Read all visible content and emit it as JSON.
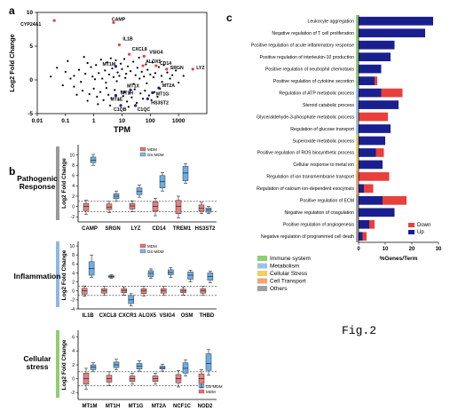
{
  "figure_label": "Fig.2",
  "colors": {
    "red": "#e8403a",
    "blue": "#1a1f8f",
    "box_blue": "#6aaee6",
    "box_red": "#e58080",
    "mdm_red": "#ef6b6b",
    "ds_blue": "#7bb6ea",
    "immune": "#8fcf6f",
    "metabolism": "#9cc2e8",
    "stress": "#f3cd60",
    "transport": "#f2a56e",
    "others": "#a0a0a0"
  },
  "chart_data": [
    {
      "panel": "a",
      "type": "scatter",
      "xlabel": "TPM",
      "ylabel": "Log2 Fold Change",
      "xscale": "log",
      "xlim": [
        0.01,
        10000
      ],
      "ylim": [
        -5,
        10
      ],
      "x_ticks": [
        "0.01",
        "0.1",
        "1",
        "10",
        "100",
        "1000"
      ],
      "y_ticks": [
        "-5",
        "0",
        "5",
        "10"
      ],
      "labeled_genes": [
        {
          "name": "CYP24A1",
          "x": 0.04,
          "y": 8.8,
          "color": "red"
        },
        {
          "name": "CAMP",
          "x": 5,
          "y": 8.5,
          "color": "red"
        },
        {
          "name": "IL1B",
          "x": 8,
          "y": 5.2,
          "color": "red"
        },
        {
          "name": "CXCL8",
          "x": 18,
          "y": 3.8,
          "color": "red"
        },
        {
          "name": "VSIG4",
          "x": 60,
          "y": 3.5,
          "color": "red"
        },
        {
          "name": "ALOX5",
          "x": 55,
          "y": 2.1,
          "color": "red"
        },
        {
          "name": "CD14",
          "x": 160,
          "y": 2.1,
          "color": "red"
        },
        {
          "name": "SRGN",
          "x": 380,
          "y": 1.6,
          "color": "red"
        },
        {
          "name": "LYZ",
          "x": 3200,
          "y": 1.6,
          "color": "red"
        },
        {
          "name": "MT1M",
          "x": 6,
          "y": 2.0,
          "color": "blue"
        },
        {
          "name": "MT2A",
          "x": 200,
          "y": -1.2,
          "color": "blue"
        },
        {
          "name": "MT1X",
          "x": 20,
          "y": -1.5,
          "color": "blue"
        },
        {
          "name": "MT1H",
          "x": 12,
          "y": -1.8,
          "color": "blue"
        },
        {
          "name": "MT1G",
          "x": 120,
          "y": -1.9,
          "color": "blue"
        },
        {
          "name": "MT1E",
          "x": 6,
          "y": -2.3,
          "color": "blue"
        },
        {
          "name": "HS3ST2",
          "x": 80,
          "y": -2.8,
          "color": "blue"
        },
        {
          "name": "C1QB",
          "x": 9,
          "y": -3.8,
          "color": "blue"
        },
        {
          "name": "C1QC",
          "x": 30,
          "y": -3.8,
          "color": "blue"
        }
      ],
      "points": [
        [
          0.1,
          1.2
        ],
        [
          0.2,
          0.6
        ],
        [
          0.3,
          1.5
        ],
        [
          0.5,
          0.9
        ],
        [
          0.6,
          2.5
        ],
        [
          0.8,
          1.9
        ],
        [
          0.9,
          0.5
        ],
        [
          1.2,
          2.2
        ],
        [
          1.5,
          1.0
        ],
        [
          1.8,
          3.0
        ],
        [
          2.0,
          0.2
        ],
        [
          2.5,
          1.4
        ],
        [
          3.0,
          2.6
        ],
        [
          3.5,
          0.8
        ],
        [
          4.0,
          3.2
        ],
        [
          4.5,
          1.7
        ],
        [
          5.0,
          0.4
        ],
        [
          6.0,
          2.9
        ],
        [
          7.0,
          1.1
        ],
        [
          8.0,
          0.6
        ],
        [
          9.0,
          2.4
        ],
        [
          10,
          1.6
        ],
        [
          12,
          3.1
        ],
        [
          14,
          0.9
        ],
        [
          16,
          2.0
        ],
        [
          20,
          1.3
        ],
        [
          25,
          2.7
        ],
        [
          30,
          0.7
        ],
        [
          35,
          1.8
        ],
        [
          40,
          3.3
        ],
        [
          50,
          1.2
        ],
        [
          60,
          0.5
        ],
        [
          70,
          2.3
        ],
        [
          80,
          1.5
        ],
        [
          100,
          0.8
        ],
        [
          120,
          2.6
        ],
        [
          150,
          1.0
        ],
        [
          200,
          1.9
        ],
        [
          250,
          0.6
        ],
        [
          300,
          2.2
        ],
        [
          400,
          1.1
        ],
        [
          600,
          0.7
        ],
        [
          800,
          1.4
        ],
        [
          0.2,
          -1.0
        ],
        [
          0.4,
          -1.6
        ],
        [
          0.7,
          -2.1
        ],
        [
          1.0,
          -1.3
        ],
        [
          1.3,
          -2.5
        ],
        [
          1.7,
          -1.8
        ],
        [
          2.2,
          -3.0
        ],
        [
          2.8,
          -1.2
        ],
        [
          3.3,
          -2.2
        ],
        [
          4.2,
          -2.7
        ],
        [
          5.5,
          -1.5
        ],
        [
          7.5,
          -2.9
        ],
        [
          9.5,
          -1.7
        ],
        [
          11,
          -2.4
        ],
        [
          15,
          -3.2
        ],
        [
          18,
          -1.9
        ],
        [
          22,
          -2.6
        ],
        [
          28,
          -1.4
        ],
        [
          33,
          -3.4
        ],
        [
          45,
          -2.0
        ],
        [
          55,
          -2.8
        ],
        [
          65,
          -1.6
        ],
        [
          90,
          -2.3
        ],
        [
          110,
          -3.0
        ],
        [
          140,
          -1.8
        ],
        [
          180,
          -2.5
        ],
        [
          220,
          -1.3
        ],
        [
          0.15,
          0.2
        ],
        [
          0.35,
          -0.3
        ],
        [
          0.05,
          1.8
        ],
        [
          0.08,
          -0.8
        ],
        [
          1.1,
          0.1
        ],
        [
          2.7,
          -0.4
        ],
        [
          6.5,
          -0.2
        ],
        [
          13,
          0.3
        ],
        [
          26,
          -0.6
        ],
        [
          42,
          0.2
        ],
        [
          75,
          -0.5
        ],
        [
          130,
          0.4
        ],
        [
          260,
          -0.3
        ],
        [
          500,
          0.2
        ],
        [
          1000,
          -0.4
        ],
        [
          1500,
          0.6
        ],
        [
          0.03,
          0.5
        ],
        [
          0.12,
          2.8
        ],
        [
          0.45,
          3.4
        ],
        [
          0.25,
          -2.2
        ],
        [
          0.6,
          -3.1
        ],
        [
          1.4,
          -3.6
        ],
        [
          3.8,
          -3.8
        ],
        [
          17,
          -4.0
        ]
      ]
    },
    {
      "panel": "b",
      "type": "box",
      "groups": [
        {
          "title_lines": [
            "Pathogenic",
            "Response"
          ],
          "ylabel": "Log2 Fold Change",
          "ylim": [
            -3,
            12
          ],
          "y_ticks": [
            "-2",
            "0",
            "2",
            "4",
            "6",
            "8",
            "10"
          ],
          "legend": [
            "MDM",
            "DS-MDM"
          ],
          "categories": [
            "CAMP",
            "SRGN",
            "LYZ",
            "CD14",
            "TREM1",
            "HS3ST2"
          ],
          "series": [
            {
              "name": "MDM",
              "boxes": [
                [
                  -1.5,
                  -0.8,
                  0,
                  0.6,
                  1.2
                ],
                [
                  -1.2,
                  -0.6,
                  -0.1,
                  0.5,
                  1.0
                ],
                [
                  -1.0,
                  -0.5,
                  0.1,
                  0.6,
                  1.1
                ],
                [
                  -1.8,
                  -0.9,
                  0,
                  0.9,
                  1.6
                ],
                [
                  -2.2,
                  -1.4,
                  0,
                  1.2,
                  2.0
                ],
                [
                  -1.4,
                  -0.9,
                  -0.3,
                  0.3,
                  0.8
                ]
              ]
            },
            {
              "name": "DS-MDM",
              "boxes": [
                [
                  8.0,
                  8.5,
                  9.0,
                  9.6,
                  10.1
                ],
                [
                  1.0,
                  1.5,
                  2.0,
                  2.5,
                  3.0
                ],
                [
                  1.8,
                  2.3,
                  2.9,
                  3.6,
                  4.2
                ],
                [
                  3.0,
                  3.6,
                  4.8,
                  6.0,
                  6.6
                ],
                [
                  4.5,
                  5.0,
                  6.5,
                  7.8,
                  8.3
                ],
                [
                  -1.4,
                  -1.1,
                  -0.7,
                  -0.3,
                  0
                ]
              ]
            }
          ]
        },
        {
          "title_lines": [
            "Inflammation"
          ],
          "ylabel": "Log2 Fold Change",
          "ylim": [
            -4,
            11
          ],
          "y_ticks": [
            "-4",
            "-2",
            "0",
            "2",
            "4",
            "6",
            "8",
            "10"
          ],
          "legend": [
            "MDM",
            "DS-MDM"
          ],
          "categories": [
            "IL1B",
            "CXCL8",
            "CXCR1",
            "ALOX5",
            "VSIG4",
            "OSM",
            "THBD"
          ],
          "series": [
            {
              "name": "MDM",
              "boxes": [
                [
                  -1.2,
                  -0.7,
                  0,
                  0.6,
                  1.1
                ],
                [
                  -1.0,
                  -0.5,
                  0,
                  0.5,
                  1.0
                ],
                [
                  -0.9,
                  -0.4,
                  0.1,
                  0.5,
                  0.9
                ],
                [
                  -1.1,
                  -0.6,
                  0,
                  0.5,
                  1.0
                ],
                [
                  -1.0,
                  -0.5,
                  0,
                  0.5,
                  1.0
                ],
                [
                  -0.9,
                  -0.4,
                  0,
                  0.4,
                  0.9
                ],
                [
                  -1.0,
                  -0.5,
                  0,
                  0.5,
                  1.0
                ]
              ]
            },
            {
              "name": "DS-MDM",
              "boxes": [
                [
                  3.0,
                  3.5,
                  5.0,
                  6.5,
                  8.0
                ],
                [
                  2.8,
                  3.0,
                  3.2,
                  3.4,
                  3.6
                ],
                [
                  -3.3,
                  -2.8,
                  -2.0,
                  -1.0,
                  -0.6
                ],
                [
                  2.8,
                  3.2,
                  3.9,
                  4.5,
                  4.9
                ],
                [
                  3.0,
                  3.6,
                  4.1,
                  4.7,
                  5.2
                ],
                [
                  2.0,
                  2.6,
                  3.5,
                  4.2,
                  4.6
                ],
                [
                  1.8,
                  2.4,
                  3.2,
                  4.0,
                  4.4
                ]
              ]
            }
          ]
        },
        {
          "title_lines": [
            "Cellular",
            "stress"
          ],
          "ylabel": "Log2 Fold Change",
          "ylim": [
            -3,
            7
          ],
          "y_ticks": [
            "-2",
            "0",
            "2",
            "4",
            "6"
          ],
          "legend": [
            "DS-MDM",
            "MDM"
          ],
          "categories": [
            "MT1M",
            "MT1H",
            "MT1G",
            "MT2A",
            "NCF1C",
            "NOD2"
          ],
          "series": [
            {
              "name": "MDM",
              "boxes": [
                [
                  -1.5,
                  -0.8,
                  0,
                  0.8,
                  1.5
                ],
                [
                  -1.0,
                  -0.5,
                  0,
                  0.5,
                  1.0
                ],
                [
                  -0.8,
                  -0.4,
                  0,
                  0.4,
                  0.8
                ],
                [
                  -0.8,
                  -0.4,
                  0,
                  0.4,
                  0.8
                ],
                [
                  -1.2,
                  -0.6,
                  0,
                  0.6,
                  1.2
                ],
                [
                  -1.3,
                  -0.7,
                  0,
                  0.7,
                  1.3
                ]
              ]
            },
            {
              "name": "DS-MDM",
              "boxes": [
                [
                  1.0,
                  1.3,
                  1.7,
                  2.0,
                  2.3
                ],
                [
                  1.3,
                  1.6,
                  2.0,
                  2.4,
                  2.8
                ],
                [
                  1.1,
                  1.4,
                  1.8,
                  2.2,
                  2.6
                ],
                [
                  1.1,
                  1.4,
                  1.6,
                  1.8,
                  2.1
                ],
                [
                  0.4,
                  0.8,
                  1.5,
                  2.3,
                  2.7
                ],
                [
                  0.5,
                  1.2,
                  2.2,
                  3.6,
                  4.2
                ]
              ]
            }
          ]
        }
      ]
    },
    {
      "panel": "c",
      "type": "bar",
      "xlabel": "%Genes/Term",
      "xlim": [
        0,
        30
      ],
      "x_ticks": [
        "0",
        "10",
        "20",
        "30"
      ],
      "legend": [
        "Down",
        "Up"
      ],
      "categories": [
        "Leukocyte aggregation",
        "Negative regulation of T cell proliferation",
        "Positive regulation of acute inflammatory response",
        "Positive regulation of interleukin-10 production",
        "Positive regulation of neutrophil chemotaxis",
        "Positive regulation of cytokine secretion",
        "Regulation of ATP metabolic process",
        "Steroid catabolic process",
        "Glyceraldehyde-3-phosphate metabolic process",
        "Regulation of glucose transport",
        "Superoxide metabolic process",
        "Positive regulation of ROS biosynthetic process",
        "Cellular response to metal ion",
        "Regulation of ion transmembrane transport",
        "Regulation of calcium ion-dependent exocytosis",
        "Positive regulation of ECM",
        "Negative regulation of coagulation",
        "Positive regulation of angiogenesis",
        "Negative regulation of programmed cell death"
      ],
      "category_groups": [
        "immune",
        "immune",
        "immune",
        "immune",
        "immune",
        "immune",
        "metabolism",
        "metabolism",
        "metabolism",
        "metabolism",
        "stress",
        "stress",
        "stress",
        "transport",
        "transport",
        "others",
        "others",
        "others",
        "others"
      ],
      "series": [
        {
          "name": "Down",
          "values": [
            0,
            0,
            0,
            0,
            0,
            1.0,
            8.0,
            0,
            11.0,
            0,
            0,
            3.0,
            0,
            11.5,
            3.5,
            9.0,
            0,
            2.0,
            1.5
          ]
        },
        {
          "name": "Up",
          "values": [
            28.0,
            25.0,
            13.5,
            12.0,
            8.5,
            6.0,
            8.5,
            15.0,
            0,
            12.0,
            10.0,
            6.5,
            9.0,
            0,
            2.0,
            9.0,
            13.5,
            4.0,
            1.5
          ]
        }
      ],
      "category_legend": [
        {
          "key": "immune",
          "label": "Immune system"
        },
        {
          "key": "metabolism",
          "label": "Metabolism"
        },
        {
          "key": "stress",
          "label": "Cellular Stress"
        },
        {
          "key": "transport",
          "label": "Cell Transport"
        },
        {
          "key": "others",
          "label": "Others"
        }
      ]
    }
  ]
}
